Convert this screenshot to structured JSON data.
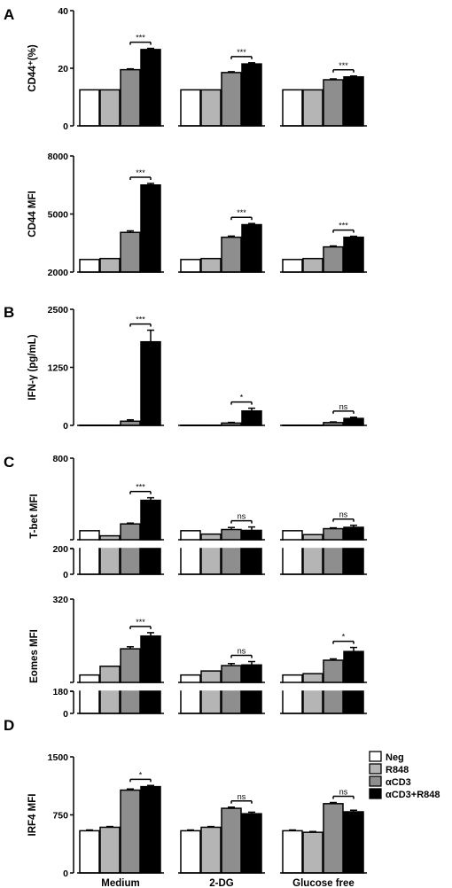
{
  "chart_data": [
    {
      "type": "bar",
      "panel_letter": "A",
      "ylabel": "CD44⁺(%)",
      "ylim": [
        0,
        40
      ],
      "yticks": [
        "0",
        "20",
        "40"
      ],
      "categories": [
        "",
        "",
        ""
      ],
      "series": [
        {
          "name": "Neg",
          "values": [
            12.5,
            12.5,
            12.5
          ],
          "errors": [
            0,
            0,
            0
          ]
        },
        {
          "name": "R848",
          "values": [
            12.5,
            12.5,
            12.5
          ],
          "errors": [
            0,
            0,
            0
          ]
        },
        {
          "name": "αCD3",
          "values": [
            19.5,
            18.5,
            16.0
          ],
          "errors": [
            0.3,
            0.3,
            0.3
          ]
        },
        {
          "name": "αCD3+R848",
          "values": [
            26.5,
            21.5,
            17.0
          ],
          "errors": [
            0.4,
            0.4,
            0.3
          ]
        }
      ],
      "significance": [
        "***",
        "***",
        "***"
      ]
    },
    {
      "type": "bar",
      "panel_letter": "",
      "ylabel": "CD44 MFI",
      "ylim": [
        2000,
        8000
      ],
      "yticks": [
        "2000",
        "5000",
        "8000"
      ],
      "categories": [
        "",
        "",
        ""
      ],
      "series": [
        {
          "name": "Neg",
          "values": [
            2650,
            2650,
            2650
          ],
          "errors": [
            0,
            0,
            0
          ]
        },
        {
          "name": "R848",
          "values": [
            2700,
            2700,
            2700
          ],
          "errors": [
            0,
            0,
            0
          ]
        },
        {
          "name": "αCD3",
          "values": [
            4050,
            3800,
            3300
          ],
          "errors": [
            80,
            60,
            50
          ]
        },
        {
          "name": "αCD3+R848",
          "values": [
            6500,
            4450,
            3800
          ],
          "errors": [
            80,
            60,
            50
          ]
        }
      ],
      "significance": [
        "***",
        "***",
        "***"
      ]
    },
    {
      "type": "bar",
      "panel_letter": "B",
      "ylabel": "IFN-γ (pg/mL)",
      "ylim": [
        0,
        2500
      ],
      "yticks": [
        "0",
        "1250",
        "2500"
      ],
      "categories": [
        "",
        "",
        ""
      ],
      "series": [
        {
          "name": "Neg",
          "values": [
            5,
            5,
            5
          ],
          "errors": [
            0,
            0,
            0
          ]
        },
        {
          "name": "R848",
          "values": [
            5,
            5,
            5
          ],
          "errors": [
            0,
            0,
            0
          ]
        },
        {
          "name": "αCD3",
          "values": [
            90,
            50,
            60
          ],
          "errors": [
            30,
            15,
            15
          ]
        },
        {
          "name": "αCD3+R848",
          "values": [
            1800,
            310,
            150
          ],
          "errors": [
            250,
            60,
            25
          ]
        }
      ],
      "significance": [
        "***",
        "*",
        "ns"
      ]
    },
    {
      "type": "bar",
      "panel_letter": "C",
      "ylabel": "T-bet MFI",
      "ylim": [
        0,
        800
      ],
      "axis_break": [
        200,
        320
      ],
      "yticks": [
        "0",
        "200",
        "800"
      ],
      "categories": [
        "",
        "",
        ""
      ],
      "series": [
        {
          "name": "Neg",
          "values": [
            373,
            373,
            373
          ],
          "errors": [
            0,
            0,
            0
          ]
        },
        {
          "name": "R848",
          "values": [
            343,
            353,
            350
          ],
          "errors": [
            0,
            0,
            0
          ]
        },
        {
          "name": "αCD3",
          "values": [
            413,
            380,
            385
          ],
          "errors": [
            5,
            12,
            5
          ]
        },
        {
          "name": "αCD3+R848",
          "values": [
            552,
            375,
            393
          ],
          "errors": [
            15,
            20,
            12
          ]
        }
      ],
      "significance": [
        "***",
        "ns",
        "ns"
      ]
    },
    {
      "type": "bar",
      "panel_letter": "",
      "ylabel": "Eomes MFI",
      "ylim": [
        0,
        320
      ],
      "axis_break": [
        180,
        196
      ],
      "yticks": [
        "0",
        "180",
        "320"
      ],
      "categories": [
        "",
        "",
        ""
      ],
      "series": [
        {
          "name": "Neg",
          "values": [
            207,
            207,
            207
          ],
          "errors": [
            0,
            0,
            0
          ]
        },
        {
          "name": "R848",
          "values": [
            220,
            213,
            209
          ],
          "errors": [
            0,
            0,
            0
          ]
        },
        {
          "name": "αCD3",
          "values": [
            246,
            221,
            229
          ],
          "errors": [
            3,
            3,
            2
          ]
        },
        {
          "name": "αCD3+R848",
          "values": [
            265,
            222,
            242
          ],
          "errors": [
            5,
            5,
            6
          ]
        }
      ],
      "significance": [
        "***",
        "ns",
        "*"
      ]
    },
    {
      "type": "bar",
      "panel_letter": "D",
      "ylabel": "IRF4 MFI",
      "ylim": [
        0,
        1500
      ],
      "yticks": [
        "0",
        "750",
        "1500"
      ],
      "categories": [
        "Medium",
        "2-DG",
        "Glucose free"
      ],
      "series": [
        {
          "name": "Neg",
          "values": [
            545,
            545,
            545
          ],
          "errors": [
            10,
            10,
            10
          ]
        },
        {
          "name": "R848",
          "values": [
            590,
            590,
            525
          ],
          "errors": [
            10,
            10,
            10
          ]
        },
        {
          "name": "αCD3",
          "values": [
            1070,
            835,
            895
          ],
          "errors": [
            15,
            15,
            15
          ]
        },
        {
          "name": "αCD3+R848",
          "values": [
            1115,
            765,
            790
          ],
          "errors": [
            15,
            20,
            20
          ]
        }
      ],
      "significance": [
        "*",
        "ns",
        "ns"
      ]
    }
  ],
  "legend": {
    "entries": [
      "Neg",
      "R848",
      "αCD3",
      "αCD3+R848"
    ],
    "colors": [
      "#ffffff",
      "#b5b5b5",
      "#8e8e8e",
      "#000000"
    ]
  }
}
